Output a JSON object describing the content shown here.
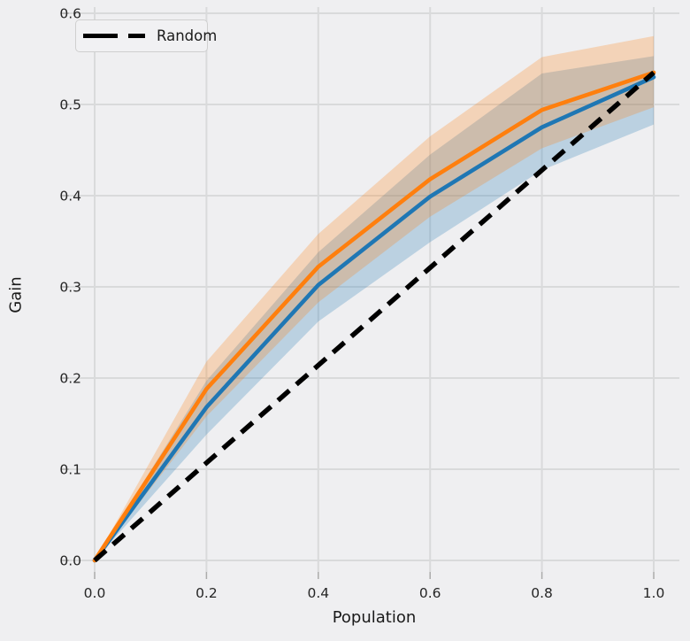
{
  "chart_data": {
    "type": "line",
    "title": "",
    "xlabel": "Population",
    "ylabel": "Gain",
    "x_ticks": [
      "0.0",
      "0.2",
      "0.4",
      "0.6",
      "0.8",
      "1.0"
    ],
    "y_ticks": [
      "0.0",
      "0.1",
      "0.2",
      "0.3",
      "0.4",
      "0.5",
      "0.6"
    ],
    "xlim": [
      -0.046,
      1.046
    ],
    "ylim": [
      -0.013,
      0.607
    ],
    "grid": true,
    "x": [
      0.0,
      0.2,
      0.4,
      0.6,
      0.8,
      1.0
    ],
    "series": [
      {
        "name": "blue-model-gain",
        "legend_label": "",
        "color": "#1f77b4",
        "style": "solid",
        "values": [
          0.0,
          0.168,
          0.302,
          0.399,
          0.475,
          0.53
        ],
        "band_upper": [
          0.0,
          0.197,
          0.338,
          0.445,
          0.534,
          0.553
        ],
        "band_lower": [
          0.0,
          0.138,
          0.262,
          0.349,
          0.428,
          0.478
        ]
      },
      {
        "name": "orange-model-gain",
        "legend_label": "",
        "color": "#ff7f0e",
        "style": "solid",
        "values": [
          0.0,
          0.188,
          0.322,
          0.418,
          0.494,
          0.535
        ],
        "band_upper": [
          0.0,
          0.218,
          0.358,
          0.465,
          0.552,
          0.575
        ],
        "band_lower": [
          0.0,
          0.158,
          0.283,
          0.377,
          0.452,
          0.497
        ]
      },
      {
        "name": "random-baseline",
        "legend_label": "Random",
        "color": "#000000",
        "style": "dashed",
        "values": [
          0.0,
          0.107,
          0.214,
          0.321,
          0.428,
          0.535
        ]
      }
    ],
    "legend": {
      "position": "upper-left",
      "entries": [
        "Random"
      ]
    }
  },
  "colors": {
    "background": "#efeff1",
    "gridline": "#d9dadb",
    "tick_mark": "#ababab",
    "tick_label": "#262626",
    "axis_label": "#1a1a1a",
    "band_opacity": "0.25",
    "legend_background": "#f1f1f3",
    "legend_border": "#cfcfcf"
  }
}
